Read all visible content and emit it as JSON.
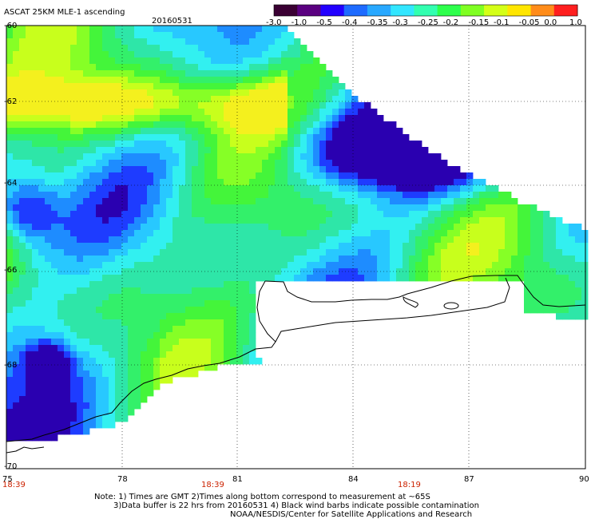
{
  "header": {
    "title": "ASCAT 25KM MLE-1 ascending",
    "date": "20160531"
  },
  "colorbar": {
    "colors": [
      "#3a0033",
      "#5a0080",
      "#2200ff",
      "#1e6bff",
      "#28a8ff",
      "#32e6ff",
      "#32ffb0",
      "#2dff4c",
      "#7fff22",
      "#d4ff17",
      "#ffe600",
      "#ff8c1a",
      "#ff1f1f"
    ],
    "labels": [
      "-3.0",
      "-1.0",
      "-0.5",
      "-0.4",
      "-0.35",
      "-0.3",
      "-0.25",
      "-0.2",
      "-0.15",
      "-0.1",
      "-0.05",
      "0.0",
      "1.0"
    ]
  },
  "axes": {
    "lat_labels": [
      "-60",
      "-62",
      "-64",
      "-66",
      "-68",
      "-70"
    ],
    "lon_labels": [
      "75",
      "78",
      "81",
      "84",
      "87",
      "90"
    ],
    "time_labels": [
      "18:39",
      "18:39",
      "18:19"
    ]
  },
  "notes": {
    "line1": "Note: 1) Times are GMT 2)Times along bottom correspond to measurement at ~65S",
    "line2": "3)Data buffer is 22 hrs from 20160531 4) Black wind barbs indicate possible contamination",
    "line3": "NOAA/NESDIS/Center for Satellite Applications and Research"
  }
}
